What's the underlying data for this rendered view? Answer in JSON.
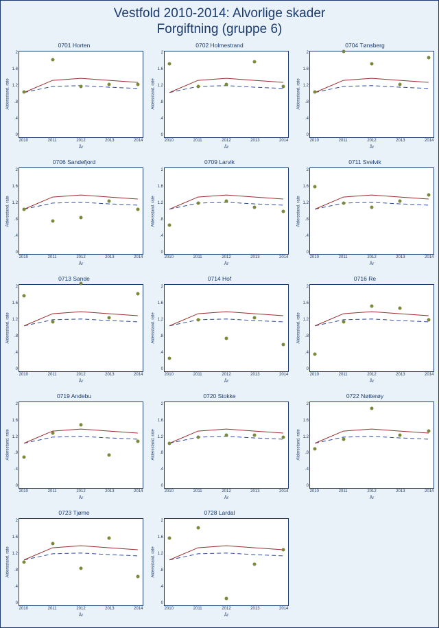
{
  "title_line1": "Vestfold 2010-2014: Alvorlige skader",
  "title_line2": "Forgiftning (gruppe 6)",
  "title_color": "#1a3a6e",
  "title_fontsize": 19,
  "background_color": "#eaf2f9",
  "panel_bg": "#ffffff",
  "border_color": "#1a3a6e",
  "axis_label_color": "#1a3a6e",
  "xlabel": "År",
  "ylabel": "Aldersstand. rate",
  "xlim": [
    2010,
    2014
  ],
  "ylim": [
    0,
    2
  ],
  "xticks": [
    2010,
    2011,
    2012,
    2013,
    2014
  ],
  "yticks": [
    0,
    0.4,
    0.8,
    1.2,
    1.6,
    2
  ],
  "ytick_labels": [
    "0",
    ".4",
    ".8",
    "1.2",
    "1.6",
    "2"
  ],
  "tick_fontsize": 6,
  "panel_title_fontsize": 8.5,
  "scatter_color": "#7a8a3a",
  "scatter_size": 5,
  "solid_line_color": "#9c2b2b",
  "solid_line_width": 1.3,
  "dashed_line_color": "#2b4a9c",
  "dashed_line_width": 1.3,
  "dashed_pattern": "6,4",
  "solid_line": {
    "x": [
      2010,
      2011,
      2012,
      2013,
      2014
    ],
    "y": [
      1.05,
      1.35,
      1.4,
      1.35,
      1.3
    ]
  },
  "dashed_line": {
    "x": [
      2010,
      2011,
      2012,
      2013,
      2014
    ],
    "y": [
      1.05,
      1.2,
      1.22,
      1.18,
      1.15
    ]
  },
  "panels": [
    {
      "title": "0701 Horten",
      "points": {
        "x": [
          2010,
          2011,
          2012,
          2013,
          2014
        ],
        "y": [
          1.05,
          1.85,
          1.2,
          1.25,
          1.25
        ]
      }
    },
    {
      "title": "0702 Holmestrand",
      "points": {
        "x": [
          2010,
          2011,
          2012,
          2013,
          2014
        ],
        "y": [
          1.75,
          1.2,
          1.25,
          1.8,
          1.2
        ]
      }
    },
    {
      "title": "0704 Tønsberg",
      "points": {
        "x": [
          2010,
          2011,
          2012,
          2013,
          2014
        ],
        "y": [
          1.05,
          2.05,
          1.75,
          1.25,
          1.9
        ]
      }
    },
    {
      "title": "0706 Sandefjord",
      "points": {
        "x": [
          2010,
          2011,
          2012,
          2013,
          2014
        ],
        "y": [
          1.05,
          0.75,
          0.85,
          1.25,
          1.05
        ]
      }
    },
    {
      "title": "0709 Larvik",
      "points": {
        "x": [
          2010,
          2011,
          2012,
          2013,
          2014
        ],
        "y": [
          0.65,
          1.2,
          1.25,
          1.1,
          1.0
        ]
      }
    },
    {
      "title": "0711 Svelvik",
      "points": {
        "x": [
          2010,
          2011,
          2012,
          2013,
          2014
        ],
        "y": [
          1.6,
          1.2,
          1.1,
          1.25,
          1.4
        ]
      }
    },
    {
      "title": "0713 Sande",
      "points": {
        "x": [
          2010,
          2011,
          2012,
          2013,
          2014
        ],
        "y": [
          1.8,
          1.15,
          2.1,
          1.25,
          1.85
        ]
      }
    },
    {
      "title": "0714 Hof",
      "points": {
        "x": [
          2010,
          2011,
          2012,
          2013,
          2014
        ],
        "y": [
          0.25,
          1.2,
          0.75,
          1.25,
          0.6
        ]
      }
    },
    {
      "title": "0716 Re",
      "points": {
        "x": [
          2010,
          2011,
          2012,
          2013,
          2014
        ],
        "y": [
          0.35,
          1.15,
          1.55,
          1.5,
          1.2
        ]
      }
    },
    {
      "title": "0719 Andebu",
      "points": {
        "x": [
          2010,
          2011,
          2012,
          2013,
          2014
        ],
        "y": [
          0.7,
          1.3,
          1.5,
          0.75,
          1.1
        ]
      }
    },
    {
      "title": "0720 Stokke",
      "points": {
        "x": [
          2010,
          2011,
          2012,
          2013,
          2014
        ],
        "y": [
          1.05,
          1.2,
          1.25,
          1.25,
          1.2
        ]
      }
    },
    {
      "title": "0722 Nøtterøy",
      "points": {
        "x": [
          2010,
          2011,
          2012,
          2013,
          2014
        ],
        "y": [
          0.9,
          1.15,
          1.9,
          1.25,
          1.35
        ]
      }
    },
    {
      "title": "0723 Tjøme",
      "points": {
        "x": [
          2010,
          2011,
          2012,
          2013,
          2014
        ],
        "y": [
          1.0,
          1.45,
          0.85,
          1.6,
          0.65
        ]
      }
    },
    {
      "title": "0728 Lardal",
      "points": {
        "x": [
          2010,
          2011,
          2012,
          2013,
          2014
        ],
        "y": [
          1.6,
          1.85,
          0.1,
          0.95,
          1.3
        ]
      }
    }
  ],
  "grid_cols": 3,
  "grid_rows": 5
}
